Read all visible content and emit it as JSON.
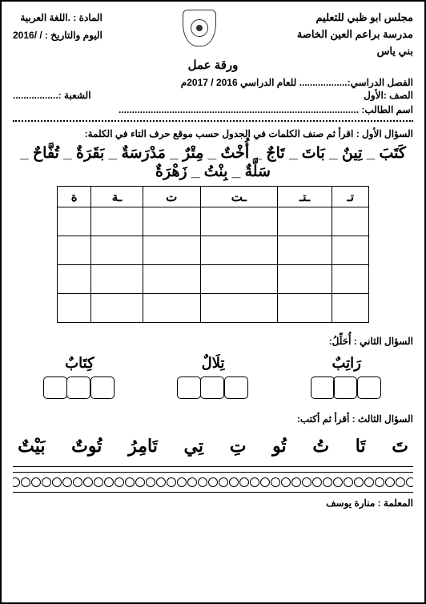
{
  "header": {
    "council": "مجلس ابو ظبي للتعليم",
    "school": "مدرسة براعم العين الخاصة",
    "branch": "بني ياس",
    "subject_label": "المادة : .اللغة العربية",
    "date_label": "اليوم والتاريخ :  /  /2016",
    "title": "ورقة عمل"
  },
  "info": {
    "semester": "الفصل الدراسي:.................. للعام الدراسي 2016 / 2017م",
    "grade": "الصف :الأول",
    "section": "الشعبة :.................",
    "student": "اسم الطالب: .........................................................................................."
  },
  "q1": {
    "prompt": "السؤال الأول : اقرأ ثم صنف الكلمات في الجدول حسب موقع حرف التاء في الكلمة:",
    "words": "كَتَبَ _ تِينٌ _ بَاتَ _ تَاجٌ _ أُخْتٌ _ مِتْرٌ _ مَدْرَسَةٌ _ بَقَرَةٌ _ تُفَّاحٌ _ سَلَّةٌ _ بِنْتُ _ زَهْرَةٌ",
    "headers": [
      "تـ",
      "ـتـ",
      "ـت",
      "ت",
      "ـة",
      "ة"
    ]
  },
  "q2": {
    "prompt": "السؤال الثاني : أُحَلِّلُ:",
    "items": [
      {
        "word": "رَاتِبٌ",
        "boxes": 3
      },
      {
        "word": "تِلَالٌ",
        "boxes": 3
      },
      {
        "word": "كِتَابٌ",
        "boxes": 3
      }
    ]
  },
  "q3": {
    "prompt": "السؤال الثالث : أقرأ ثم أكتب:",
    "letters": [
      "تَ",
      "تَا",
      "تُ",
      "تُو",
      "تِ",
      "تِي",
      "تَامِرُ",
      "تُوتٌ",
      "بَيْتٌ"
    ]
  },
  "footer": {
    "circles": 39,
    "teacher": "المعلمة : منارة يوسف"
  }
}
